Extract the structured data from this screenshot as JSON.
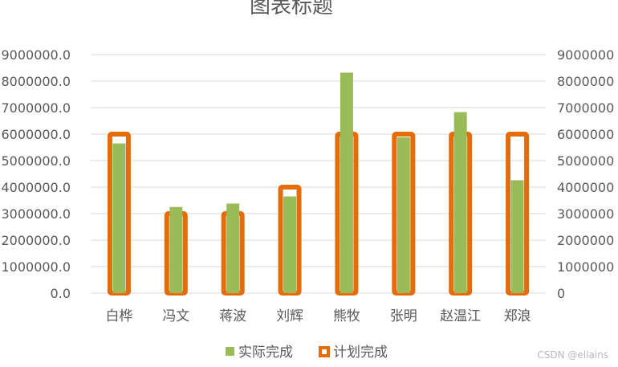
{
  "chart_data": {
    "type": "bar",
    "title": "图表标题",
    "categories": [
      "白桦",
      "冯文",
      "蒋波",
      "刘辉",
      "熊牧",
      "张明",
      "赵温江",
      "郑浪"
    ],
    "series": [
      {
        "name": "实际完成",
        "axis": "left",
        "style": "filled",
        "color": "#9bbb59",
        "values": [
          5650000,
          3250000,
          3380000,
          3650000,
          8320000,
          5880000,
          6830000,
          4260000
        ]
      },
      {
        "name": "计划完成",
        "axis": "right",
        "style": "outline",
        "color": "#e46c0a",
        "values": [
          6000000,
          3000000,
          3000000,
          4000000,
          6000000,
          6000000,
          6000000,
          6000000
        ]
      }
    ],
    "ylim_left": [
      0,
      9000000
    ],
    "ylim_right": [
      0,
      9000000
    ],
    "ytick_step": 1000000,
    "left_ticks": [
      "0.0",
      "1000000.0",
      "2000000.0",
      "3000000.0",
      "4000000.0",
      "5000000.0",
      "6000000.0",
      "7000000.0",
      "8000000.0",
      "9000000.0"
    ],
    "right_ticks": [
      "0",
      "1000000",
      "2000000",
      "3000000",
      "4000000",
      "5000000",
      "6000000",
      "7000000",
      "8000000",
      "9000000"
    ],
    "grid": true,
    "legend_position": "bottom"
  },
  "watermark": "CSDN @ellains"
}
